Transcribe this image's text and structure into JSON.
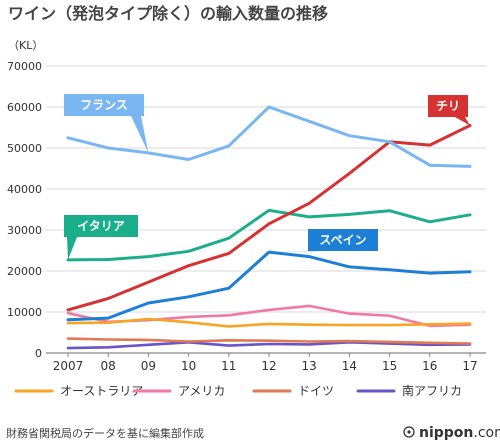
{
  "chart_data": {
    "type": "line",
    "title": "ワイン（発泡タイプ除く）の輸入数量の推移",
    "ylabel": "（KL）",
    "xlabel": "",
    "x": [
      "2007",
      "08",
      "09",
      "10",
      "11",
      "12",
      "13",
      "14",
      "15",
      "16",
      "17"
    ],
    "ylim": [
      0,
      70000
    ],
    "yticks": [
      "0",
      "10000",
      "20000",
      "30000",
      "40000",
      "50000",
      "60000",
      "70000"
    ],
    "grid": true,
    "legend_position": "bottom",
    "series": [
      {
        "name": "フランス",
        "color": "#79b6f2",
        "callout": true,
        "values": [
          52500,
          50000,
          48800,
          47200,
          50500,
          60000,
          56500,
          53000,
          51500,
          45800,
          45500
        ]
      },
      {
        "name": "チリ",
        "color": "#d63232",
        "callout": true,
        "values": [
          10500,
          13300,
          17300,
          21300,
          24300,
          31500,
          36500,
          43800,
          51500,
          50700,
          55500
        ]
      },
      {
        "name": "イタリア",
        "color": "#1aae8a",
        "callout": true,
        "values": [
          22700,
          22800,
          23500,
          24800,
          28000,
          34800,
          33200,
          33800,
          34700,
          32000,
          33700
        ]
      },
      {
        "name": "スペイン",
        "color": "#1d7fd6",
        "callout": true,
        "values": [
          8100,
          8500,
          12200,
          13700,
          15800,
          24600,
          23500,
          21000,
          20300,
          19500,
          19800
        ]
      },
      {
        "name": "オーストラリア",
        "color": "#f5a623",
        "callout": false,
        "values": [
          7300,
          7400,
          8300,
          7500,
          6500,
          7100,
          6900,
          6800,
          6800,
          7000,
          7200
        ]
      },
      {
        "name": "アメリカ",
        "color": "#f07aa6",
        "callout": false,
        "values": [
          9700,
          7600,
          8000,
          8800,
          9200,
          10500,
          11500,
          9600,
          9100,
          6600,
          6900
        ]
      },
      {
        "name": "ドイツ",
        "color": "#e07a52",
        "callout": false,
        "values": [
          3500,
          3300,
          3200,
          2800,
          3100,
          3000,
          2800,
          2900,
          2700,
          2500,
          2300
        ]
      },
      {
        "name": "南アフリカ",
        "color": "#6a54c8",
        "callout": false,
        "values": [
          1200,
          1400,
          2000,
          2600,
          1800,
          2200,
          2100,
          2600,
          2300,
          2000,
          2100
        ]
      }
    ],
    "source": "財務省関税局のデータを基に編集部作成",
    "brand": "nippon.com",
    "brand_suffix": ".com",
    "brand_main": "nippon"
  }
}
